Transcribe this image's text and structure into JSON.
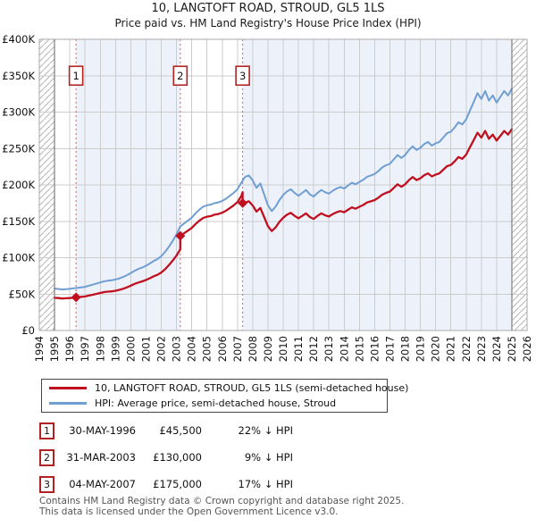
{
  "header": {
    "title": "10, LANGTOFT ROAD, STROUD, GL5 1LS",
    "subtitle": "Price paid vs. HM Land Registry's House Price Index (HPI)"
  },
  "legend": {
    "items": [
      {
        "label": "10, LANGTOFT ROAD, STROUD, GL5 1LS (semi-detached house)",
        "color": "#c01020"
      },
      {
        "label": "HPI: Average price, semi-detached house, Stroud",
        "color": "#6f9ed2"
      }
    ]
  },
  "sales": [
    {
      "n": "1",
      "date": "30-MAY-1996",
      "price": "£45,500",
      "hpi_diff": "22% ↓ HPI"
    },
    {
      "n": "2",
      "date": "31-MAR-2003",
      "price": "£130,000",
      "hpi_diff": "9% ↓ HPI"
    },
    {
      "n": "3",
      "date": "04-MAY-2007",
      "price": "£175,000",
      "hpi_diff": "17% ↓ HPI"
    }
  ],
  "footer": {
    "line1": "Contains HM Land Registry data © Crown copyright and database right 2025.",
    "line2": "This data is licensed under the Open Government Licence v3.0."
  },
  "chart_data": {
    "type": "line",
    "title": "10, LANGTOFT ROAD, STROUD, GL5 1LS",
    "subtitle": "Price paid vs. HM Land Registry's House Price Index (HPI)",
    "unit": "GBP thousands",
    "x_range": [
      1994,
      2026
    ],
    "y_range": [
      0,
      400
    ],
    "y_tick_step": 50,
    "y_tick_labels": [
      "£0",
      "£50K",
      "£100K",
      "£150K",
      "£200K",
      "£250K",
      "£300K",
      "£350K",
      "£400K"
    ],
    "x_ticks": [
      1994,
      1995,
      1996,
      1997,
      1998,
      1999,
      2000,
      2001,
      2002,
      2003,
      2004,
      2005,
      2006,
      2007,
      2008,
      2009,
      2010,
      2011,
      2012,
      2013,
      2014,
      2015,
      2016,
      2017,
      2018,
      2019,
      2020,
      2021,
      2022,
      2023,
      2024,
      2025,
      2026
    ],
    "grid": true,
    "legend_position": "bottom",
    "hatch_regions": [
      [
        1994,
        1995
      ],
      [
        2025,
        2026
      ]
    ],
    "shaded_regions": [
      [
        1996.41,
        2003.25
      ],
      [
        2007.34,
        2025
      ]
    ],
    "shade_color": "#edf2fa",
    "sale_lines": {
      "color": "#ee5555",
      "x_values": [
        1996.41,
        2003.25,
        2007.34
      ],
      "labels": [
        "1",
        "2",
        "3"
      ],
      "label_y": 350
    },
    "markers": {
      "color": "#c01020",
      "points": [
        [
          1996.41,
          45.5
        ],
        [
          2003.25,
          130
        ],
        [
          2007.34,
          175
        ]
      ]
    },
    "series": [
      {
        "name": "HPI: Average price, semi-detached house, Stroud",
        "color": "#6f9ed2",
        "width": 2,
        "points": [
          [
            1995,
            57.5
          ],
          [
            1995.25,
            57
          ],
          [
            1995.5,
            56.3
          ],
          [
            1995.75,
            56.8
          ],
          [
            1996,
            57.2
          ],
          [
            1996.25,
            58
          ],
          [
            1996.5,
            58.6
          ],
          [
            1996.75,
            59.3
          ],
          [
            1997,
            60
          ],
          [
            1997.25,
            61.5
          ],
          [
            1997.5,
            63
          ],
          [
            1997.75,
            64.5
          ],
          [
            1998,
            66
          ],
          [
            1998.25,
            67.5
          ],
          [
            1998.5,
            68.5
          ],
          [
            1998.75,
            69
          ],
          [
            1999,
            70
          ],
          [
            1999.25,
            71.5
          ],
          [
            1999.5,
            73.5
          ],
          [
            1999.75,
            76
          ],
          [
            2000,
            79
          ],
          [
            2000.25,
            82
          ],
          [
            2000.5,
            84.5
          ],
          [
            2000.75,
            86.5
          ],
          [
            2001,
            89
          ],
          [
            2001.25,
            92
          ],
          [
            2001.5,
            95.5
          ],
          [
            2001.75,
            98
          ],
          [
            2002,
            102
          ],
          [
            2002.25,
            108
          ],
          [
            2002.5,
            115
          ],
          [
            2002.75,
            123
          ],
          [
            2003,
            132
          ],
          [
            2003.25,
            143
          ],
          [
            2003.5,
            147
          ],
          [
            2003.75,
            151
          ],
          [
            2004,
            155
          ],
          [
            2004.25,
            161
          ],
          [
            2004.5,
            166
          ],
          [
            2004.75,
            170
          ],
          [
            2005,
            172
          ],
          [
            2005.25,
            173
          ],
          [
            2005.5,
            175
          ],
          [
            2005.75,
            176
          ],
          [
            2006,
            178
          ],
          [
            2006.25,
            181
          ],
          [
            2006.5,
            185
          ],
          [
            2006.75,
            189
          ],
          [
            2007,
            194
          ],
          [
            2007.25,
            203
          ],
          [
            2007.5,
            211
          ],
          [
            2007.75,
            213
          ],
          [
            2008,
            206
          ],
          [
            2008.25,
            196
          ],
          [
            2008.5,
            202
          ],
          [
            2008.75,
            187
          ],
          [
            2009,
            172
          ],
          [
            2009.25,
            164
          ],
          [
            2009.5,
            170
          ],
          [
            2009.75,
            179
          ],
          [
            2010,
            186
          ],
          [
            2010.25,
            191
          ],
          [
            2010.5,
            194
          ],
          [
            2010.75,
            189
          ],
          [
            2011,
            185
          ],
          [
            2011.25,
            189
          ],
          [
            2011.5,
            193
          ],
          [
            2011.75,
            187
          ],
          [
            2012,
            184
          ],
          [
            2012.25,
            189
          ],
          [
            2012.5,
            193
          ],
          [
            2012.75,
            190
          ],
          [
            2013,
            188
          ],
          [
            2013.25,
            192
          ],
          [
            2013.5,
            195
          ],
          [
            2013.75,
            197
          ],
          [
            2014,
            195
          ],
          [
            2014.25,
            199
          ],
          [
            2014.5,
            203
          ],
          [
            2014.75,
            201
          ],
          [
            2015,
            204
          ],
          [
            2015.25,
            207
          ],
          [
            2015.5,
            211
          ],
          [
            2015.75,
            213
          ],
          [
            2016,
            215
          ],
          [
            2016.25,
            219
          ],
          [
            2016.5,
            224
          ],
          [
            2016.75,
            227
          ],
          [
            2017,
            229
          ],
          [
            2017.25,
            235
          ],
          [
            2017.5,
            241
          ],
          [
            2017.75,
            237
          ],
          [
            2018,
            241
          ],
          [
            2018.25,
            248
          ],
          [
            2018.5,
            253
          ],
          [
            2018.75,
            248
          ],
          [
            2019,
            251
          ],
          [
            2019.25,
            256
          ],
          [
            2019.5,
            259
          ],
          [
            2019.75,
            254
          ],
          [
            2020,
            257
          ],
          [
            2020.25,
            259
          ],
          [
            2020.5,
            265
          ],
          [
            2020.75,
            271
          ],
          [
            2021,
            273
          ],
          [
            2021.25,
            279
          ],
          [
            2021.5,
            286
          ],
          [
            2021.75,
            283
          ],
          [
            2022,
            290
          ],
          [
            2022.25,
            302
          ],
          [
            2022.5,
            314
          ],
          [
            2022.75,
            326
          ],
          [
            2023,
            318
          ],
          [
            2023.25,
            329
          ],
          [
            2023.5,
            316
          ],
          [
            2023.75,
            323
          ],
          [
            2024,
            313
          ],
          [
            2024.25,
            321
          ],
          [
            2024.5,
            329
          ],
          [
            2024.75,
            323
          ],
          [
            2025,
            332
          ]
        ]
      },
      {
        "name": "10, LANGTOFT ROAD, STROUD, GL5 1LS (semi-detached house)",
        "color": "#c01020",
        "width": 2.3,
        "points": [
          [
            1995,
            44.9
          ],
          [
            1995.25,
            44.5
          ],
          [
            1995.5,
            43.9
          ],
          [
            1995.75,
            44.3
          ],
          [
            1996,
            44.6
          ],
          [
            1996.25,
            45.2
          ],
          [
            1996.41,
            45.5
          ],
          [
            1996.5,
            45.7
          ],
          [
            1996.75,
            46.3
          ],
          [
            1997,
            46.8
          ],
          [
            1997.25,
            48
          ],
          [
            1997.5,
            49.1
          ],
          [
            1997.75,
            50.3
          ],
          [
            1998,
            51.5
          ],
          [
            1998.25,
            52.7
          ],
          [
            1998.5,
            53.4
          ],
          [
            1998.75,
            53.8
          ],
          [
            1999,
            54.6
          ],
          [
            1999.25,
            55.8
          ],
          [
            1999.5,
            57.3
          ],
          [
            1999.75,
            59.3
          ],
          [
            2000,
            61.6
          ],
          [
            2000.25,
            64
          ],
          [
            2000.5,
            65.9
          ],
          [
            2000.75,
            67.5
          ],
          [
            2001,
            69.4
          ],
          [
            2001.25,
            71.8
          ],
          [
            2001.5,
            74.5
          ],
          [
            2001.75,
            76.4
          ],
          [
            2002,
            79.6
          ],
          [
            2002.25,
            84.2
          ],
          [
            2002.5,
            89.7
          ],
          [
            2002.75,
            95.9
          ],
          [
            2003,
            103
          ],
          [
            2003.25,
            111.5
          ],
          [
            2003.25,
            130
          ],
          [
            2003.5,
            133.6
          ],
          [
            2003.75,
            137.2
          ],
          [
            2004,
            140.9
          ],
          [
            2004.25,
            146.3
          ],
          [
            2004.5,
            150.9
          ],
          [
            2004.75,
            154.5
          ],
          [
            2005,
            156.3
          ],
          [
            2005.25,
            157.2
          ],
          [
            2005.5,
            159.1
          ],
          [
            2005.75,
            160
          ],
          [
            2006,
            161.8
          ],
          [
            2006.25,
            164.5
          ],
          [
            2006.5,
            168.2
          ],
          [
            2006.75,
            171.8
          ],
          [
            2007,
            176.4
          ],
          [
            2007.25,
            184.5
          ],
          [
            2007.34,
            190
          ],
          [
            2007.34,
            175
          ],
          [
            2007.5,
            175.8
          ],
          [
            2007.75,
            177.4
          ],
          [
            2008,
            171.6
          ],
          [
            2008.25,
            163.3
          ],
          [
            2008.5,
            168.3
          ],
          [
            2008.75,
            155.8
          ],
          [
            2009,
            143.3
          ],
          [
            2009.25,
            136.6
          ],
          [
            2009.5,
            141.6
          ],
          [
            2009.75,
            149.1
          ],
          [
            2010,
            154.9
          ],
          [
            2010.25,
            159.1
          ],
          [
            2010.5,
            161.6
          ],
          [
            2010.75,
            157.4
          ],
          [
            2011,
            154.1
          ],
          [
            2011.25,
            157.4
          ],
          [
            2011.5,
            160.8
          ],
          [
            2011.75,
            155.8
          ],
          [
            2012,
            153.3
          ],
          [
            2012.25,
            157.4
          ],
          [
            2012.5,
            160.8
          ],
          [
            2012.75,
            158.3
          ],
          [
            2013,
            156.6
          ],
          [
            2013.25,
            159.9
          ],
          [
            2013.5,
            162.4
          ],
          [
            2013.75,
            164.1
          ],
          [
            2014,
            162.4
          ],
          [
            2014.25,
            165.8
          ],
          [
            2014.5,
            169.1
          ],
          [
            2014.75,
            167.4
          ],
          [
            2015,
            169.9
          ],
          [
            2015.25,
            172.4
          ],
          [
            2015.5,
            175.8
          ],
          [
            2015.75,
            177.4
          ],
          [
            2016,
            179.1
          ],
          [
            2016.25,
            182.4
          ],
          [
            2016.5,
            186.6
          ],
          [
            2016.75,
            189.1
          ],
          [
            2017,
            190.8
          ],
          [
            2017.25,
            195.8
          ],
          [
            2017.5,
            200.8
          ],
          [
            2017.75,
            197.4
          ],
          [
            2018,
            200.8
          ],
          [
            2018.25,
            206.6
          ],
          [
            2018.5,
            210.8
          ],
          [
            2018.75,
            206.6
          ],
          [
            2019,
            209.1
          ],
          [
            2019.25,
            213.3
          ],
          [
            2019.5,
            215.8
          ],
          [
            2019.75,
            211.6
          ],
          [
            2020,
            214.1
          ],
          [
            2020.25,
            215.8
          ],
          [
            2020.5,
            220.8
          ],
          [
            2020.75,
            225.8
          ],
          [
            2021,
            227.4
          ],
          [
            2021.25,
            232.4
          ],
          [
            2021.5,
            238.3
          ],
          [
            2021.75,
            235.8
          ],
          [
            2022,
            241.6
          ],
          [
            2022.25,
            251.6
          ],
          [
            2022.5,
            261.6
          ],
          [
            2022.75,
            271.6
          ],
          [
            2023,
            264.9
          ],
          [
            2023.25,
            274.1
          ],
          [
            2023.5,
            263.3
          ],
          [
            2023.75,
            269.1
          ],
          [
            2024,
            260.8
          ],
          [
            2024.25,
            267.4
          ],
          [
            2024.5,
            274.1
          ],
          [
            2024.75,
            269.1
          ],
          [
            2025,
            276.5
          ]
        ]
      }
    ]
  }
}
